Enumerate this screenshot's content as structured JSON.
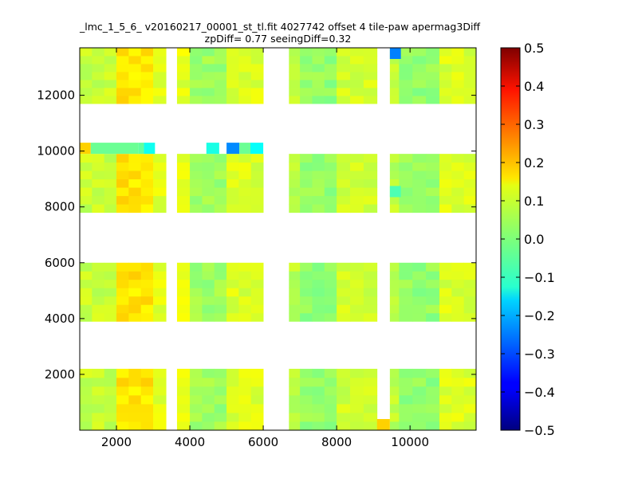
{
  "chart_data": {
    "type": "heatmap",
    "title": "_lmc_1_5_6_ v20160217_00001_st_tl.fit 4027742 offset 4 tile-paw apermag3Diff",
    "subtitle": "zpDiff= 0.77 seeingDiff=0.32",
    "xlim": [
      1000,
      11800
    ],
    "ylim": [
      0,
      13700
    ],
    "x_ticks": [
      2000,
      4000,
      6000,
      8000,
      10000
    ],
    "x_tick_labels": [
      "2000",
      "4000",
      "6000",
      "8000",
      "10000"
    ],
    "y_ticks": [
      2000,
      4000,
      6000,
      8000,
      10000,
      12000
    ],
    "y_tick_labels": [
      "2000",
      "4000",
      "6000",
      "8000",
      "10000",
      "12000"
    ],
    "colorbar": {
      "colormap": "jet",
      "vmin": -0.5,
      "vmax": 0.5,
      "ticks": [
        0.5,
        0.4,
        0.3,
        0.2,
        0.1,
        0.0,
        -0.1,
        -0.2,
        -0.3,
        -0.4,
        -0.5
      ],
      "tick_labels": [
        "0.5",
        "0.4",
        "0.3",
        "0.2",
        "0.1",
        "0.0",
        "−0.1",
        "−0.2",
        "−0.3",
        "−0.4",
        "−0.5"
      ]
    },
    "column_groups": [
      {
        "x_start": 1000,
        "x_end": 2000,
        "level": 0.07
      },
      {
        "x_start": 2000,
        "x_end": 3000,
        "level": 0.15
      },
      {
        "x_start": 3000,
        "x_end": 3350,
        "level": 0.1
      },
      {
        "x_start": 3650,
        "x_end": 4000,
        "level": 0.1
      },
      {
        "x_start": 4000,
        "x_end": 5000,
        "level": 0.03
      },
      {
        "x_start": 5000,
        "x_end": 6000,
        "level": 0.09
      },
      {
        "x_start": 6700,
        "x_end": 7000,
        "level": 0.06
      },
      {
        "x_start": 7000,
        "x_end": 8000,
        "level": 0.02
      },
      {
        "x_start": 8000,
        "x_end": 9100,
        "level": 0.08
      },
      {
        "x_start": 9450,
        "x_end": 9700,
        "level": 0.06
      },
      {
        "x_start": 9700,
        "x_end": 10800,
        "level": 0.02
      },
      {
        "x_start": 10800,
        "x_end": 11800,
        "level": 0.09
      }
    ],
    "row_bands": [
      {
        "y_start": 0,
        "y_end": 2200
      },
      {
        "y_start": 3900,
        "y_end": 6000
      },
      {
        "y_start": 7800,
        "y_end": 9900
      },
      {
        "y_start": 11700,
        "y_end": 13700
      }
    ],
    "special_row": {
      "y_start": 9900,
      "y_end": 10300,
      "cells": [
        {
          "x_start": 1000,
          "x_end": 1300,
          "value": 0.17
        },
        {
          "x_start": 1300,
          "x_end": 2600,
          "value": -0.02
        },
        {
          "x_start": 2600,
          "x_end": 2750,
          "value": -0.03
        },
        {
          "x_start": 2750,
          "x_end": 3050,
          "value": -0.11
        },
        {
          "x_start": 4450,
          "x_end": 4800,
          "value": -0.1
        },
        {
          "x_start": 5000,
          "x_end": 5350,
          "value": -0.24
        },
        {
          "x_start": 5350,
          "x_end": 5650,
          "value": -0.02
        },
        {
          "x_start": 5650,
          "x_end": 6000,
          "value": -0.12
        }
      ]
    },
    "outlier_cells": [
      {
        "x_start": 9450,
        "x_end": 9750,
        "y_start": 13300,
        "y_end": 13700,
        "value": -0.25
      },
      {
        "x_start": 9450,
        "x_end": 9750,
        "y_start": 8350,
        "y_end": 8750,
        "value": -0.05
      },
      {
        "x_start": 9100,
        "x_end": 9450,
        "y_start": 0,
        "y_end": 400,
        "value": 0.17
      }
    ]
  }
}
